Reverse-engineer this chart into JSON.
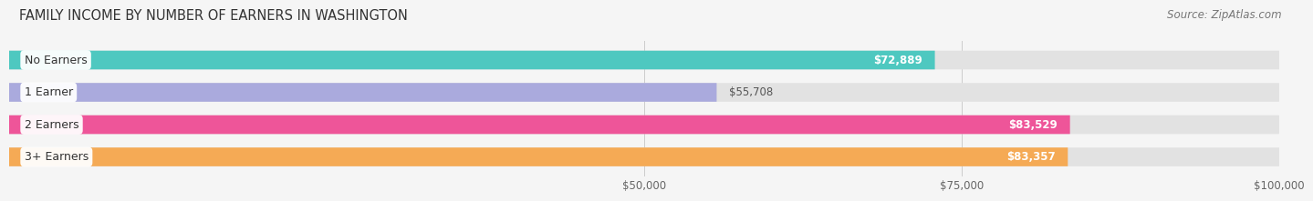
{
  "title": "FAMILY INCOME BY NUMBER OF EARNERS IN WASHINGTON",
  "source": "Source: ZipAtlas.com",
  "categories": [
    "No Earners",
    "1 Earner",
    "2 Earners",
    "3+ Earners"
  ],
  "values": [
    72889,
    55708,
    83529,
    83357
  ],
  "bar_colors": [
    "#4EC8C0",
    "#AAAADD",
    "#EE5599",
    "#F5AA55"
  ],
  "value_labels": [
    "$72,889",
    "$55,708",
    "$83,529",
    "$83,357"
  ],
  "xmin": 0,
  "xmax": 100000,
  "xticks": [
    50000,
    75000,
    100000
  ],
  "xtick_labels": [
    "$50,000",
    "$75,000",
    "$100,000"
  ],
  "background_color": "#f5f5f5",
  "bar_bg_color": "#e2e2e2",
  "title_fontsize": 10.5,
  "source_fontsize": 8.5,
  "label_fontsize": 9,
  "value_fontsize": 8.5,
  "bar_height": 0.58,
  "label_threshold": 65000,
  "value_inside_color": "white",
  "value_outside_color": "#555555"
}
